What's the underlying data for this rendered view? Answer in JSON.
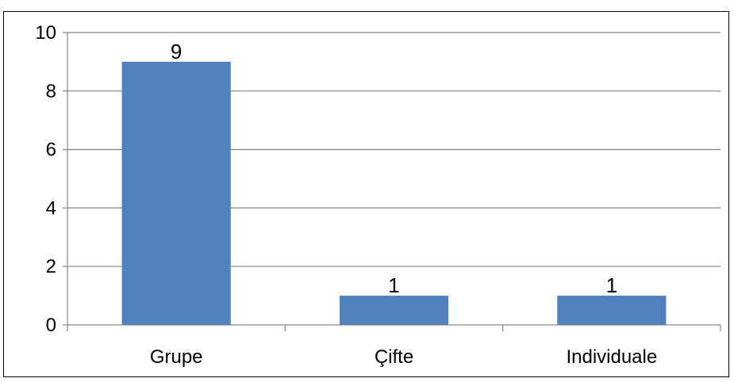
{
  "chart_data": {
    "type": "bar",
    "categories": [
      "Grupe",
      "Çifte",
      "Individuale"
    ],
    "values": [
      9,
      1,
      1
    ],
    "title": "",
    "xlabel": "",
    "ylabel": "",
    "ylim": [
      0,
      10
    ],
    "yticks": [
      "0",
      "2",
      "4",
      "6",
      "8",
      "10"
    ],
    "data_labels": [
      "9",
      "1",
      "1"
    ],
    "grid": true,
    "legend": "none",
    "bar_color": "#4F81BD"
  }
}
